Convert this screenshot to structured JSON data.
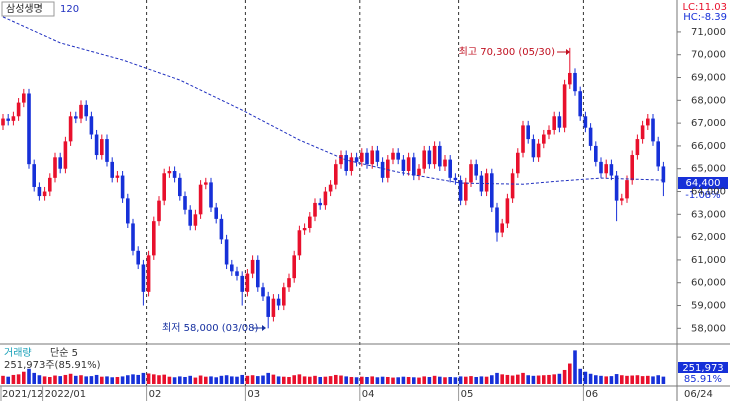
{
  "chart_data": {
    "type": "candlestick",
    "title": "삼성생명",
    "lc_label": "LC:11.03",
    "hc_label": "HC:-8.39",
    "up_color": "#e8102c",
    "down_color": "#1630d8",
    "ylim": [
      57400,
      72400
    ],
    "yticks": [
      {
        "value": 58000,
        "label": "58,000"
      },
      {
        "value": 59000,
        "label": "59,000"
      },
      {
        "value": 60000,
        "label": "60,000"
      },
      {
        "value": 61000,
        "label": "61,000"
      },
      {
        "value": 62000,
        "label": "62,000"
      },
      {
        "value": 63000,
        "label": "63,000"
      },
      {
        "value": 64000,
        "label": "64,000"
      },
      {
        "value": 65000,
        "label": "65,000"
      },
      {
        "value": 66000,
        "label": "66,000"
      },
      {
        "value": 67000,
        "label": "67,000"
      },
      {
        "value": 68000,
        "label": "68,000"
      },
      {
        "value": 69000,
        "label": "69,000"
      },
      {
        "value": 70000,
        "label": "70,000"
      },
      {
        "value": 71000,
        "label": "71,000"
      }
    ],
    "last_price": {
      "value": 64400,
      "label": "64,400"
    },
    "change_pct": {
      "value": -1.08,
      "label": "-1.08%"
    },
    "annotations": [
      "최고 70,300 (05/30)",
      "최저 58,000 (03/08)"
    ],
    "categories": [
      "2021/12",
      null,
      null,
      null,
      null,
      null,
      null,
      null,
      "2022/01",
      null,
      null,
      null,
      null,
      null,
      null,
      null,
      null,
      null,
      null,
      null,
      null,
      null,
      null,
      null,
      null,
      null,
      null,
      null,
      "02",
      null,
      null,
      null,
      null,
      null,
      null,
      null,
      null,
      null,
      null,
      null,
      null,
      null,
      null,
      null,
      null,
      null,
      null,
      "03",
      null,
      null,
      null,
      null,
      null,
      null,
      null,
      null,
      null,
      null,
      null,
      null,
      null,
      null,
      null,
      null,
      null,
      null,
      null,
      null,
      null,
      "04",
      null,
      null,
      null,
      null,
      null,
      null,
      null,
      null,
      null,
      null,
      null,
      null,
      null,
      null,
      null,
      null,
      null,
      null,
      "05",
      null,
      null,
      null,
      null,
      null,
      null,
      null,
      null,
      null,
      null,
      null,
      null,
      null,
      null,
      null,
      null,
      null,
      null,
      null,
      null,
      null,
      null,
      null,
      "06",
      null,
      null,
      null,
      null,
      null,
      null,
      null,
      null,
      null,
      null,
      null,
      null,
      null,
      null,
      "06/24"
    ],
    "open": [
      66900,
      67200,
      67100,
      67300,
      67900,
      68300,
      65200,
      64200,
      63800,
      64000,
      64600,
      65500,
      65000,
      66200,
      67300,
      67200,
      67800,
      67300,
      66500,
      65600,
      66300,
      65300,
      64600,
      64700,
      63700,
      62600,
      61400,
      60800,
      59600,
      61200,
      62700,
      63600,
      64800,
      64900,
      64600,
      63800,
      63200,
      62500,
      63000,
      64300,
      64400,
      63300,
      62800,
      61900,
      60800,
      60500,
      60300,
      59600,
      60400,
      61000,
      59800,
      59400,
      58500,
      59300,
      59000,
      59800,
      60200,
      61200,
      62300,
      62400,
      62900,
      63500,
      63400,
      64000,
      64300,
      65200,
      65600,
      64900,
      65500,
      65300,
      65700,
      65200,
      65800,
      65300,
      64600,
      65400,
      65700,
      65400,
      64900,
      65500,
      64700,
      65000,
      65800,
      65200,
      66000,
      65100,
      65400,
      64600,
      64500,
      63600,
      64400,
      65200,
      64700,
      64000,
      64800,
      63300,
      62200,
      62600,
      63700,
      64800,
      65700,
      66900,
      66300,
      65500,
      66100,
      66500,
      66700,
      67300,
      66800,
      68700,
      69200,
      68400,
      67300,
      66800,
      66000,
      65300,
      64800,
      65200,
      64700,
      63600,
      63700,
      64500,
      65600,
      66300,
      66900,
      67200,
      66200,
      65100
    ],
    "high": [
      67400,
      67400,
      67500,
      68100,
      68500,
      68500,
      65400,
      64400,
      64200,
      64800,
      65700,
      65700,
      66400,
      67500,
      67500,
      68000,
      68000,
      67500,
      66700,
      66500,
      66500,
      65500,
      64900,
      64900,
      63900,
      62800,
      61600,
      61000,
      61400,
      62900,
      63800,
      65000,
      65100,
      65100,
      64800,
      64000,
      63400,
      63200,
      64500,
      64600,
      64600,
      63500,
      63000,
      62100,
      61000,
      60700,
      60500,
      60600,
      61200,
      61200,
      60000,
      59600,
      59500,
      59500,
      60000,
      60400,
      61400,
      62500,
      62600,
      63100,
      63700,
      63700,
      64200,
      64500,
      65400,
      65800,
      65800,
      65700,
      65700,
      65900,
      65900,
      66000,
      66000,
      65500,
      65600,
      65900,
      65900,
      65600,
      65700,
      65700,
      65200,
      66000,
      66000,
      66200,
      66200,
      65600,
      65600,
      64800,
      64700,
      64600,
      65400,
      65400,
      64900,
      65000,
      65000,
      63500,
      62800,
      63900,
      65000,
      65900,
      67100,
      67100,
      66500,
      66300,
      66700,
      66900,
      67500,
      67500,
      68900,
      70300,
      69400,
      68600,
      67500,
      67000,
      66200,
      65500,
      65400,
      65400,
      64900,
      63900,
      64700,
      65800,
      66500,
      67100,
      67400,
      67400,
      66400,
      65300
    ],
    "low": [
      66700,
      66900,
      66900,
      67100,
      67700,
      65000,
      64000,
      63600,
      63600,
      63800,
      64400,
      64800,
      64800,
      66000,
      67000,
      67000,
      67100,
      66300,
      65400,
      65400,
      65100,
      64400,
      64400,
      63500,
      62400,
      61200,
      60600,
      59000,
      59400,
      61000,
      62500,
      63400,
      64600,
      64400,
      63600,
      63000,
      62300,
      62300,
      62800,
      64100,
      63100,
      62600,
      61700,
      60600,
      60300,
      60100,
      59000,
      59400,
      60200,
      59600,
      59200,
      58000,
      58300,
      58800,
      58800,
      59600,
      60000,
      61000,
      62100,
      62200,
      62700,
      63200,
      63200,
      63800,
      64100,
      65000,
      64700,
      64700,
      65100,
      65100,
      65000,
      65000,
      65100,
      64400,
      64400,
      65200,
      65200,
      64700,
      64700,
      64500,
      64500,
      64800,
      65000,
      65000,
      64900,
      64900,
      64400,
      64300,
      63400,
      63400,
      64200,
      64500,
      63800,
      63800,
      63100,
      61800,
      62000,
      62400,
      63500,
      64600,
      65500,
      66100,
      65300,
      65300,
      65900,
      66300,
      66500,
      66600,
      66600,
      68500,
      68200,
      67100,
      66600,
      65800,
      65100,
      64600,
      64600,
      64500,
      62700,
      63400,
      63500,
      64300,
      65400,
      66100,
      66700,
      66000,
      64900,
      63800
    ],
    "close": [
      67200,
      67100,
      67300,
      67900,
      68300,
      65200,
      64200,
      63800,
      64000,
      64600,
      65500,
      65000,
      66200,
      67300,
      67200,
      67800,
      67300,
      66500,
      65600,
      66300,
      65300,
      64600,
      64700,
      63700,
      62600,
      61400,
      60800,
      59600,
      61200,
      62700,
      63600,
      64800,
      64900,
      64600,
      63800,
      63200,
      62500,
      63000,
      64300,
      64400,
      63300,
      62800,
      61900,
      60800,
      60500,
      60300,
      59600,
      60400,
      61000,
      59800,
      59400,
      58500,
      59300,
      59000,
      59800,
      60200,
      61200,
      62300,
      62400,
      62900,
      63500,
      63400,
      64000,
      64300,
      65200,
      65600,
      64900,
      65500,
      65300,
      65700,
      65200,
      65800,
      65300,
      64600,
      65400,
      65700,
      65400,
      64900,
      65500,
      64700,
      65000,
      65800,
      65200,
      66000,
      65100,
      65400,
      64600,
      64500,
      63600,
      64400,
      65200,
      64700,
      64000,
      64800,
      63300,
      62200,
      62600,
      63700,
      64800,
      65700,
      66900,
      66300,
      65500,
      66100,
      66500,
      66700,
      67300,
      66800,
      68700,
      69200,
      68400,
      67300,
      66800,
      66000,
      65300,
      64800,
      65200,
      64700,
      63600,
      63700,
      64500,
      65600,
      66300,
      66900,
      67200,
      66200,
      65100,
      64400
    ],
    "ma": {
      "name": "120",
      "color": "#2030c0",
      "x": [
        0,
        11,
        23,
        34,
        46,
        57,
        66,
        76,
        88,
        100,
        107,
        115,
        127
      ],
      "values": [
        71660,
        70520,
        69770,
        68890,
        67570,
        66260,
        65380,
        64850,
        64370,
        64320,
        64460,
        64590,
        64500
      ]
    },
    "volume": {
      "title": "거래량",
      "ma_label": "단순 5",
      "summary": "251,973주(85.91%)",
      "last_label": "251,973",
      "ratio_label": "85.91%",
      "ylim": [
        0,
        1300000
      ],
      "values": [
        280000,
        250000,
        310000,
        330000,
        420000,
        520000,
        380000,
        300000,
        260000,
        240000,
        290000,
        270000,
        310000,
        350000,
        280000,
        300000,
        260000,
        270000,
        310000,
        250000,
        260000,
        230000,
        240000,
        260000,
        300000,
        330000,
        310000,
        380000,
        360000,
        330000,
        300000,
        320000,
        250000,
        230000,
        260000,
        240000,
        280000,
        220000,
        290000,
        250000,
        260000,
        230000,
        280000,
        300000,
        260000,
        250000,
        310000,
        280000,
        300000,
        270000,
        290000,
        380000,
        320000,
        260000,
        250000,
        240000,
        300000,
        330000,
        260000,
        250000,
        280000,
        240000,
        250000,
        270000,
        310000,
        290000,
        260000,
        240000,
        230000,
        250000,
        240000,
        260000,
        230000,
        250000,
        240000,
        220000,
        230000,
        250000,
        240000,
        230000,
        220000,
        260000,
        240000,
        280000,
        250000,
        230000,
        240000,
        230000,
        260000,
        250000,
        270000,
        240000,
        260000,
        250000,
        300000,
        380000,
        330000,
        310000,
        290000,
        320000,
        380000,
        300000,
        280000,
        290000,
        300000,
        310000,
        330000,
        350000,
        480000,
        700000,
        1150000,
        520000,
        420000,
        350000,
        300000,
        280000,
        260000,
        270000,
        340000,
        300000,
        280000,
        290000,
        300000,
        270000,
        280000,
        260000,
        300000,
        251973
      ]
    }
  }
}
